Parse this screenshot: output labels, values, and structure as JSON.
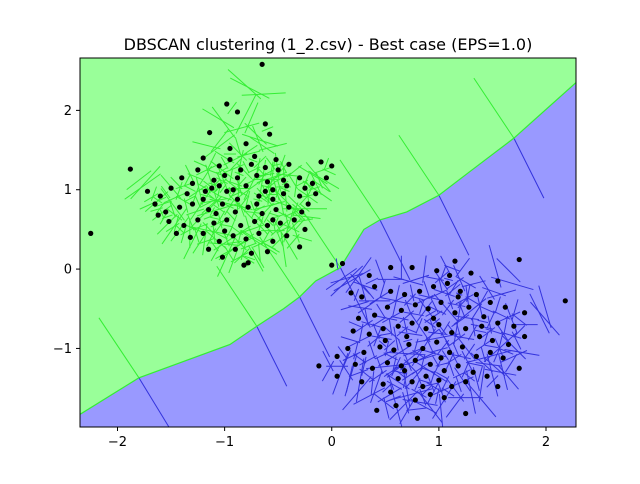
{
  "chart_data": {
    "type": "scatter",
    "title": "DBSCAN clustering (1_2.csv) - Best case (EPS=1.0)",
    "xlabel": "",
    "ylabel": "",
    "xlim": [
      -2.35,
      2.28
    ],
    "ylim": [
      -1.99,
      2.66
    ],
    "xticks": [
      -2,
      -1,
      0,
      1,
      2
    ],
    "xtick_labels": [
      "−2",
      "−1",
      "0",
      "1",
      "2"
    ],
    "yticks": [
      2,
      1,
      0,
      -1
    ],
    "ytick_labels": [
      "2",
      "1",
      "0",
      "−1"
    ],
    "grid": false,
    "legend": "none",
    "colors": {
      "cluster_a_fill": "#99ff99",
      "cluster_a_edges": "#33ee33",
      "cluster_b_fill": "#9999ff",
      "cluster_b_edges": "#3333dd",
      "points": "#000000"
    },
    "cluster_boundary": [
      [
        -2.35,
        -1.83
      ],
      [
        -1.8,
        -1.37
      ],
      [
        -0.95,
        -0.95
      ],
      [
        -0.7,
        -0.72
      ],
      [
        -0.45,
        -0.5
      ],
      [
        -0.3,
        -0.35
      ],
      [
        -0.15,
        -0.15
      ],
      [
        0.08,
        0.02
      ],
      [
        0.3,
        0.5
      ],
      [
        0.45,
        0.62
      ],
      [
        0.7,
        0.72
      ],
      [
        1.0,
        0.93
      ],
      [
        1.3,
        1.24
      ],
      [
        1.7,
        1.65
      ],
      [
        2.28,
        2.35
      ]
    ],
    "series": [
      {
        "values": [
          [
            -0.65,
            2.58
          ],
          [
            -0.98,
            2.08
          ],
          [
            -0.88,
            1.98
          ],
          [
            -0.62,
            1.83
          ],
          [
            -1.14,
            1.72
          ],
          [
            -0.58,
            1.7
          ],
          [
            -0.52,
            1.38
          ],
          [
            -1.88,
            1.26
          ],
          [
            -0.72,
            1.42
          ],
          [
            -0.8,
            1.58
          ],
          [
            -0.95,
            1.52
          ],
          [
            -1.2,
            1.4
          ],
          [
            -1.05,
            1.3
          ],
          [
            -1.25,
            1.25
          ],
          [
            -1.0,
            1.18
          ],
          [
            -0.85,
            1.25
          ],
          [
            -0.7,
            1.18
          ],
          [
            -0.6,
            1.1
          ],
          [
            -0.45,
            1.12
          ],
          [
            -0.5,
            1.25
          ],
          [
            -0.4,
            1.32
          ],
          [
            -0.3,
            1.15
          ],
          [
            -0.18,
            1.08
          ],
          [
            -0.1,
            1.35
          ],
          [
            0.0,
            1.3
          ],
          [
            -0.05,
            1.15
          ],
          [
            -0.15,
            0.95
          ],
          [
            -0.3,
            0.92
          ],
          [
            -0.45,
            0.95
          ],
          [
            -0.55,
            0.88
          ],
          [
            -0.68,
            0.92
          ],
          [
            -0.8,
            1.05
          ],
          [
            -0.92,
            1.0
          ],
          [
            -1.05,
            1.05
          ],
          [
            -1.18,
            0.98
          ],
          [
            -1.3,
            1.08
          ],
          [
            -1.4,
            1.15
          ],
          [
            -1.5,
            1.02
          ],
          [
            -1.6,
            0.92
          ],
          [
            -1.72,
            0.98
          ],
          [
            -1.65,
            0.82
          ],
          [
            -1.55,
            0.72
          ],
          [
            -1.42,
            0.78
          ],
          [
            -1.3,
            0.82
          ],
          [
            -1.15,
            0.75
          ],
          [
            -1.02,
            0.82
          ],
          [
            -0.9,
            0.72
          ],
          [
            -0.78,
            0.78
          ],
          [
            -0.65,
            0.7
          ],
          [
            -0.52,
            0.75
          ],
          [
            -0.4,
            0.78
          ],
          [
            -0.28,
            0.72
          ],
          [
            -0.22,
            0.82
          ],
          [
            -0.35,
            0.62
          ],
          [
            -0.48,
            0.58
          ],
          [
            -0.6,
            0.55
          ],
          [
            -0.72,
            0.6
          ],
          [
            -0.85,
            0.55
          ],
          [
            -0.98,
            0.62
          ],
          [
            -1.1,
            0.58
          ],
          [
            -1.25,
            0.62
          ],
          [
            -1.38,
            0.55
          ],
          [
            -1.52,
            0.6
          ],
          [
            -1.62,
            0.68
          ],
          [
            -1.45,
            0.45
          ],
          [
            -1.32,
            0.4
          ],
          [
            -1.2,
            0.45
          ],
          [
            -1.05,
            0.35
          ],
          [
            -0.92,
            0.42
          ],
          [
            -0.8,
            0.38
          ],
          [
            -0.68,
            0.45
          ],
          [
            -0.55,
            0.35
          ],
          [
            -0.42,
            0.42
          ],
          [
            -0.3,
            0.28
          ],
          [
            -0.25,
            0.5
          ],
          [
            -0.6,
            0.22
          ],
          [
            -0.75,
            0.2
          ],
          [
            -0.9,
            0.25
          ],
          [
            -1.02,
            0.15
          ],
          [
            -1.15,
            0.25
          ],
          [
            -0.82,
            0.05
          ],
          [
            -0.78,
            0.08
          ],
          [
            -0.95,
            1.38
          ],
          [
            -1.1,
            1.12
          ],
          [
            -1.2,
            0.88
          ],
          [
            -0.88,
            0.88
          ],
          [
            -0.75,
            1.32
          ],
          [
            -0.62,
            1.28
          ],
          [
            -0.55,
            1.0
          ],
          [
            -0.98,
            0.98
          ],
          [
            -1.08,
            0.7
          ],
          [
            -0.7,
            0.82
          ],
          [
            -0.55,
            0.62
          ],
          [
            -1.35,
            0.95
          ],
          [
            -0.42,
            1.05
          ],
          [
            -0.25,
            1.02
          ],
          [
            -1.0,
            0.48
          ],
          [
            -0.88,
            1.15
          ],
          [
            -2.25,
            0.45
          ],
          [
            -0.62,
            0.98
          ],
          [
            -1.12,
            1.02
          ]
        ]
      },
      {
        "values": [
          [
            1.15,
            0.1
          ],
          [
            1.75,
            0.12
          ],
          [
            0.55,
            0.02
          ],
          [
            0.35,
            -0.08
          ],
          [
            0.75,
            0.02
          ],
          [
            0.98,
            -0.02
          ],
          [
            1.1,
            -0.08
          ],
          [
            1.3,
            -0.05
          ],
          [
            1.55,
            -0.15
          ],
          [
            2.18,
            -0.4
          ],
          [
            0.0,
            0.05
          ],
          [
            0.1,
            0.07
          ],
          [
            0.18,
            -0.3
          ],
          [
            0.28,
            -0.35
          ],
          [
            0.4,
            -0.22
          ],
          [
            0.55,
            -0.28
          ],
          [
            0.68,
            -0.32
          ],
          [
            0.82,
            -0.28
          ],
          [
            0.95,
            -0.22
          ],
          [
            1.08,
            -0.18
          ],
          [
            1.2,
            -0.28
          ],
          [
            1.35,
            -0.32
          ],
          [
            1.48,
            -0.42
          ],
          [
            1.62,
            -0.48
          ],
          [
            1.8,
            -0.55
          ],
          [
            0.25,
            -0.62
          ],
          [
            0.4,
            -0.58
          ],
          [
            0.52,
            -0.48
          ],
          [
            0.65,
            -0.52
          ],
          [
            0.78,
            -0.45
          ],
          [
            0.9,
            -0.5
          ],
          [
            1.02,
            -0.42
          ],
          [
            1.15,
            -0.55
          ],
          [
            1.28,
            -0.48
          ],
          [
            1.42,
            -0.6
          ],
          [
            1.55,
            -0.68
          ],
          [
            1.7,
            -0.72
          ],
          [
            1.8,
            -0.85
          ],
          [
            0.2,
            -0.78
          ],
          [
            0.35,
            -0.82
          ],
          [
            0.48,
            -0.75
          ],
          [
            0.62,
            -0.72
          ],
          [
            0.75,
            -0.68
          ],
          [
            0.88,
            -0.75
          ],
          [
            1.0,
            -0.7
          ],
          [
            1.12,
            -0.8
          ],
          [
            1.25,
            -0.75
          ],
          [
            1.38,
            -0.85
          ],
          [
            1.5,
            -0.9
          ],
          [
            1.65,
            -0.95
          ],
          [
            0.15,
            -1.0
          ],
          [
            0.3,
            -1.05
          ],
          [
            0.45,
            -0.98
          ],
          [
            0.58,
            -1.02
          ],
          [
            0.72,
            -0.95
          ],
          [
            0.85,
            -1.0
          ],
          [
            0.98,
            -0.92
          ],
          [
            1.1,
            -1.05
          ],
          [
            1.22,
            -0.98
          ],
          [
            1.35,
            -1.1
          ],
          [
            1.48,
            -1.05
          ],
          [
            1.6,
            -1.12
          ],
          [
            0.05,
            -1.1
          ],
          [
            0.22,
            -1.2
          ],
          [
            0.38,
            -1.25
          ],
          [
            0.52,
            -1.18
          ],
          [
            0.65,
            -1.22
          ],
          [
            0.78,
            -1.15
          ],
          [
            0.92,
            -1.2
          ],
          [
            1.05,
            -1.28
          ],
          [
            1.18,
            -1.22
          ],
          [
            1.32,
            -1.3
          ],
          [
            1.45,
            -1.35
          ],
          [
            1.75,
            -1.25
          ],
          [
            -0.12,
            -1.22
          ],
          [
            0.05,
            -1.35
          ],
          [
            0.28,
            -1.42
          ],
          [
            0.48,
            -1.45
          ],
          [
            0.62,
            -1.38
          ],
          [
            0.75,
            -1.42
          ],
          [
            0.88,
            -1.35
          ],
          [
            1.0,
            -1.4
          ],
          [
            1.12,
            -1.48
          ],
          [
            1.25,
            -1.42
          ],
          [
            1.55,
            -1.48
          ],
          [
            0.42,
            -1.78
          ],
          [
            0.6,
            -1.72
          ],
          [
            0.78,
            -1.65
          ],
          [
            0.92,
            -1.58
          ],
          [
            1.05,
            -1.62
          ],
          [
            1.25,
            -1.82
          ],
          [
            0.8,
            -1.88
          ],
          [
            0.55,
            -1.55
          ],
          [
            0.68,
            -1.28
          ],
          [
            0.85,
            -1.48
          ],
          [
            1.02,
            -1.12
          ],
          [
            0.95,
            -0.62
          ],
          [
            1.18,
            -0.35
          ],
          [
            0.5,
            -0.9
          ],
          [
            1.4,
            -0.72
          ],
          [
            0.7,
            -0.85
          ]
        ]
      }
    ]
  }
}
